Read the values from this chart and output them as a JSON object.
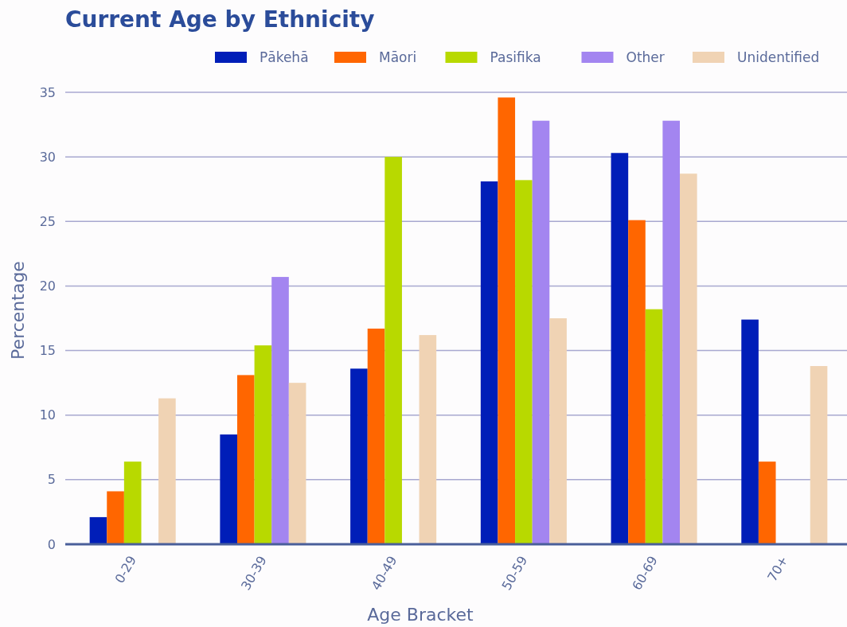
{
  "chart_data": {
    "type": "bar",
    "title": "Current Age by Ethnicity",
    "xlabel": "Age Bracket",
    "ylabel": "Percentage",
    "categories": [
      "0-29",
      "30-39",
      "40-49",
      "50-59",
      "60-69",
      "70+"
    ],
    "series": [
      {
        "name": "Pākehā",
        "color": "#001eb8",
        "values": [
          2.1,
          8.5,
          13.6,
          28.1,
          30.3,
          17.4
        ]
      },
      {
        "name": "Māori",
        "color": "#ff6600",
        "values": [
          4.1,
          13.1,
          16.7,
          34.6,
          25.1,
          6.4
        ]
      },
      {
        "name": "Pasifika",
        "color": "#b8d900",
        "values": [
          6.4,
          15.4,
          30.0,
          28.2,
          18.2,
          null
        ]
      },
      {
        "name": "Other",
        "color": "#a385f0",
        "values": [
          null,
          20.7,
          null,
          32.8,
          32.8,
          null
        ]
      },
      {
        "name": "Unidentified",
        "color": "#f0d3b4",
        "values": [
          11.3,
          12.5,
          16.2,
          17.5,
          28.7,
          13.8
        ]
      }
    ],
    "ylim": [
      0,
      35
    ],
    "yticks": [
      0,
      5,
      10,
      15,
      20,
      25,
      30,
      35
    ],
    "grid": "y",
    "legend": "top right"
  }
}
